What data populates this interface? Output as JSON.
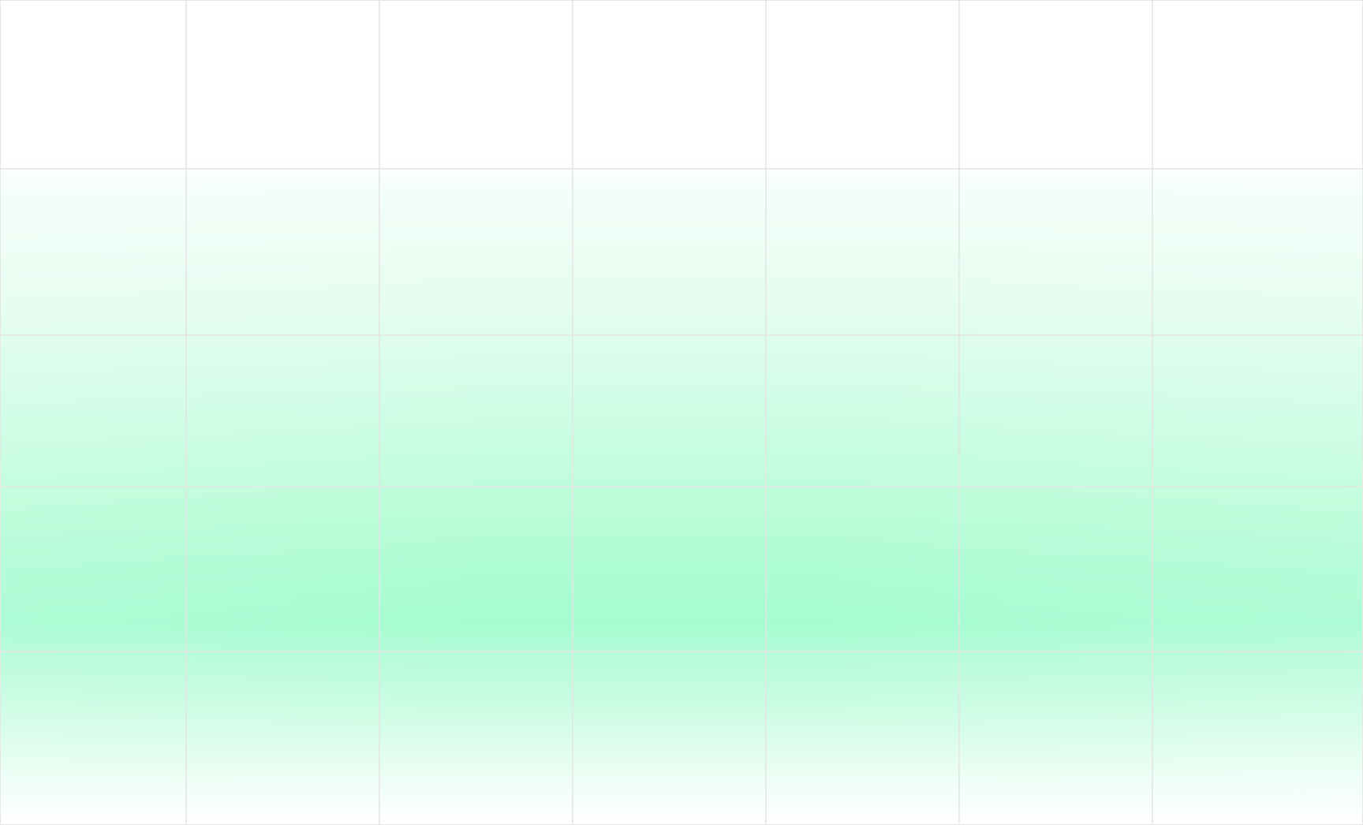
{
  "background": {
    "base_color": "#ffffff",
    "glow_color": "#a6fcd1",
    "grid_line_color": "#e4e4e4"
  },
  "grid": {
    "columns": 7,
    "rows": 5
  }
}
